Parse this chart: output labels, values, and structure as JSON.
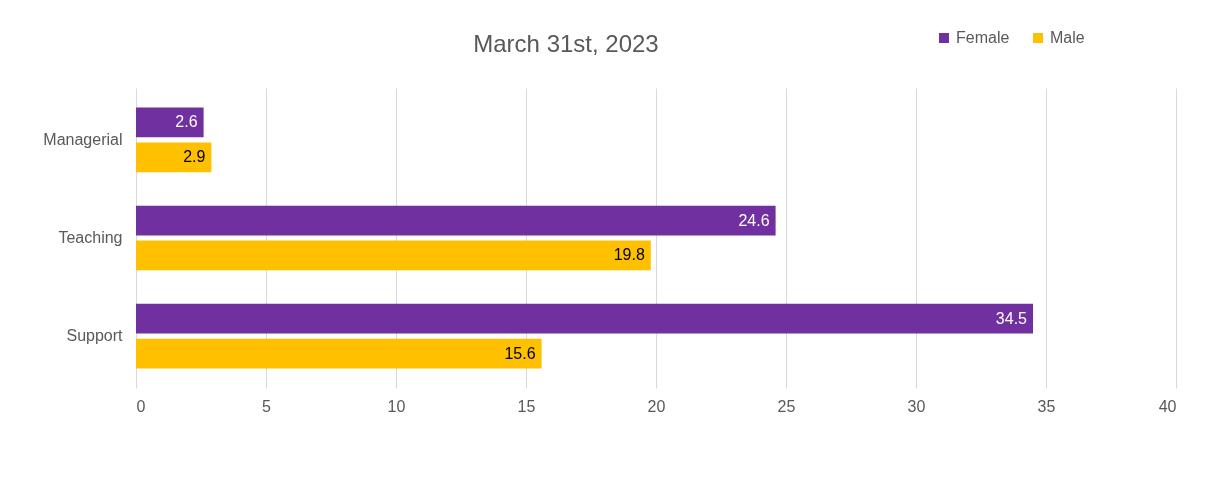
{
  "chart_data": {
    "type": "bar",
    "orientation": "horizontal",
    "title": "March 31st, 2023",
    "categories": [
      "Managerial",
      "Teaching",
      "Support"
    ],
    "series": [
      {
        "name": "Female",
        "color": "#7030a0",
        "values": [
          2.6,
          24.6,
          34.5
        ]
      },
      {
        "name": "Male",
        "color": "#ffc000",
        "values": [
          2.9,
          19.8,
          15.6
        ]
      }
    ],
    "xlim": [
      0,
      40
    ],
    "xticks": [
      0,
      5,
      10,
      15,
      20,
      25,
      30,
      35,
      40
    ],
    "grid": "x",
    "legend": "top right",
    "data_labels": true
  }
}
